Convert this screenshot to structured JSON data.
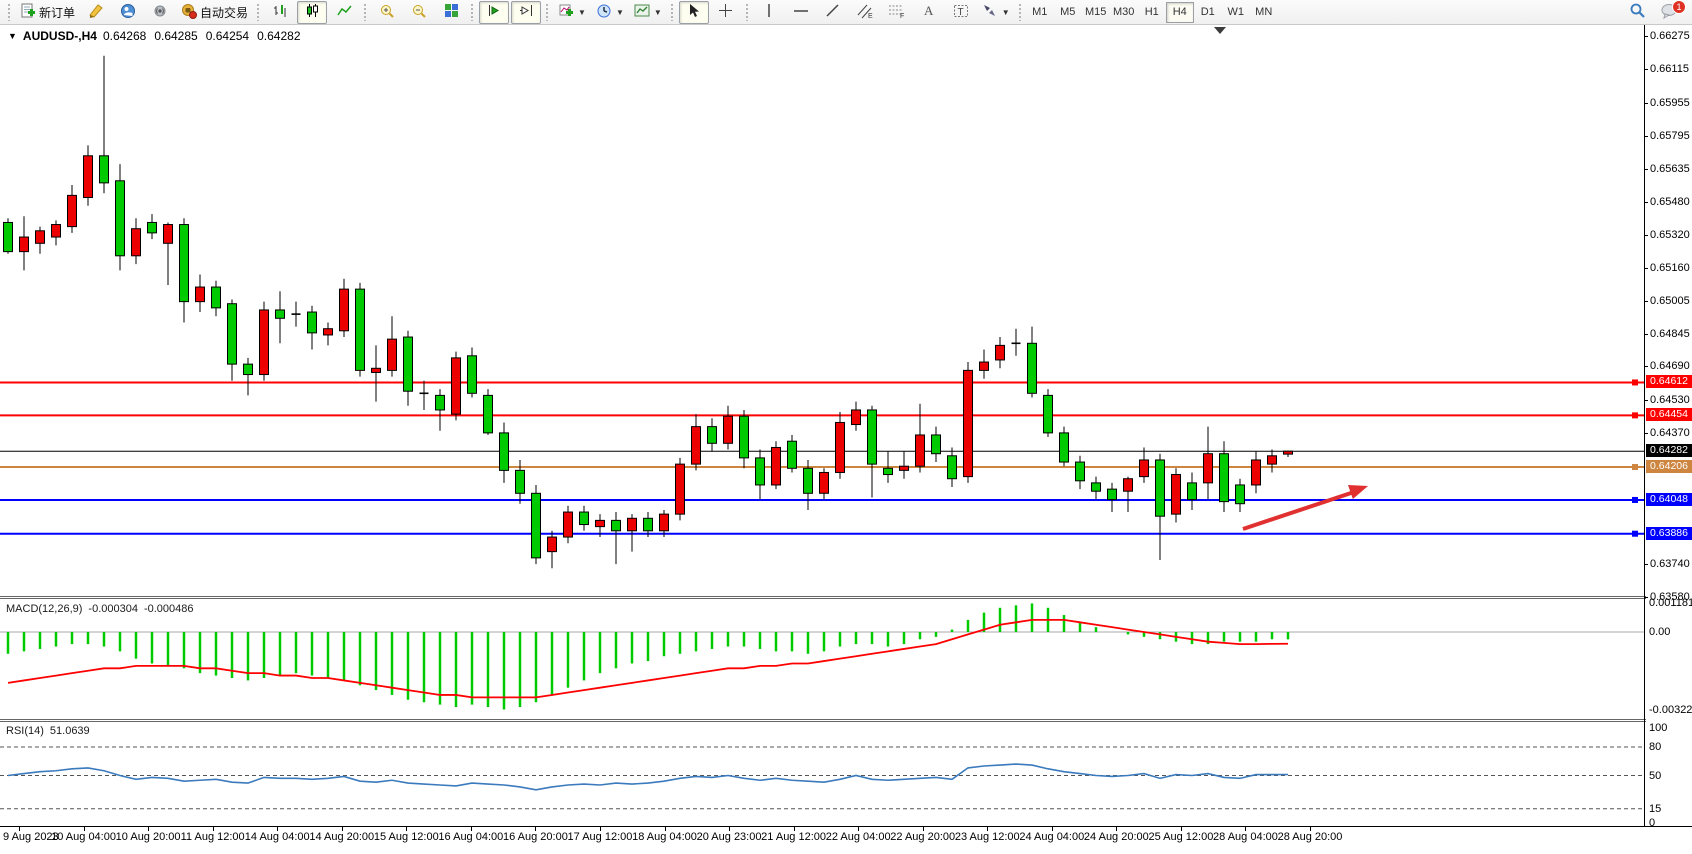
{
  "toolbar": {
    "new_order_label": "新订单",
    "autotrading_label": "自动交易",
    "notification_count": "1",
    "timeframes": [
      "M1",
      "M5",
      "M15",
      "M30",
      "H1",
      "H4",
      "D1",
      "W1",
      "MN"
    ],
    "active_timeframe": "H4"
  },
  "chart": {
    "title": "AUDUSD-,H4",
    "ohlc": {
      "open": "0.64268",
      "high": "0.64285",
      "low": "0.64254",
      "close": "0.64282"
    }
  },
  "colors": {
    "bull_candle": "#EC0000",
    "bear_candle": "#00CB00",
    "candle_outline": "#000000",
    "wick": "#000000",
    "resistance_line": "#FF0000",
    "pivot_line": "#CD853F",
    "support_line": "#0000FF",
    "current_price_line": "#000000",
    "macd_hist": "#00CB00",
    "macd_signal": "#FF0000",
    "rsi_line": "#3A7ABD",
    "arrow": "#E03030"
  },
  "chart_data": {
    "type": "candlestick",
    "symbol": "AUDUSD-",
    "period": "H4",
    "price_axis_ticks": [
      "0.66275",
      "0.66115",
      "0.65955",
      "0.65795",
      "0.65635",
      "0.65480",
      "0.65320",
      "0.65160",
      "0.65005",
      "0.64845",
      "0.64690",
      "0.64530",
      "0.64370",
      "0.63740",
      "0.63580"
    ],
    "hlines": [
      {
        "price": 0.64612,
        "label": "0.64612",
        "color": "#FF0000",
        "width": 2
      },
      {
        "price": 0.64454,
        "label": "0.64454",
        "color": "#FF0000",
        "width": 2
      },
      {
        "price": 0.64206,
        "label": "0.64206",
        "color": "#CD853F",
        "width": 2
      },
      {
        "price": 0.64048,
        "label": "0.64048",
        "color": "#0000FF",
        "width": 2
      },
      {
        "price": 0.63886,
        "label": "0.63886",
        "color": "#0000FF",
        "width": 2
      }
    ],
    "current_price": {
      "price": 0.64282,
      "label": "0.64282",
      "color": "#000000",
      "width": 1
    },
    "time_labels": [
      "9 Aug 2023",
      "10 Aug 04:00",
      "10 Aug 20:00",
      "11 Aug 12:00",
      "14 Aug 04:00",
      "14 Aug 20:00",
      "15 Aug 12:00",
      "16 Aug 04:00",
      "16 Aug 20:00",
      "17 Aug 12:00",
      "18 Aug 04:00",
      "20 Aug 23:00",
      "21 Aug 12:00",
      "22 Aug 04:00",
      "22 Aug 20:00",
      "23 Aug 12:00",
      "24 Aug 04:00",
      "24 Aug 20:00",
      "25 Aug 12:00",
      "28 Aug 04:00",
      "28 Aug 20:00"
    ],
    "candles": [
      [
        0.6538,
        0.654,
        0.6523,
        0.6524
      ],
      [
        0.6524,
        0.6541,
        0.6515,
        0.6531
      ],
      [
        0.6528,
        0.6536,
        0.6523,
        0.6534
      ],
      [
        0.6531,
        0.6539,
        0.6527,
        0.6537
      ],
      [
        0.6536,
        0.6556,
        0.6533,
        0.6551
      ],
      [
        0.655,
        0.6575,
        0.6546,
        0.657
      ],
      [
        0.657,
        0.6618,
        0.6552,
        0.6557
      ],
      [
        0.6558,
        0.6566,
        0.6515,
        0.6522
      ],
      [
        0.6522,
        0.654,
        0.6518,
        0.6535
      ],
      [
        0.6538,
        0.6542,
        0.653,
        0.6533
      ],
      [
        0.6528,
        0.6538,
        0.6508,
        0.6537
      ],
      [
        0.6537,
        0.654,
        0.649,
        0.65
      ],
      [
        0.65,
        0.6513,
        0.6495,
        0.6507
      ],
      [
        0.6507,
        0.651,
        0.6493,
        0.6497
      ],
      [
        0.6499,
        0.6501,
        0.6462,
        0.647
      ],
      [
        0.647,
        0.6473,
        0.6455,
        0.6465
      ],
      [
        0.6465,
        0.65,
        0.6462,
        0.6496
      ],
      [
        0.6496,
        0.6505,
        0.648,
        0.6492
      ],
      [
        0.6494,
        0.65,
        0.6488,
        0.6494
      ],
      [
        0.6495,
        0.6498,
        0.6477,
        0.6485
      ],
      [
        0.6484,
        0.649,
        0.6479,
        0.6487
      ],
      [
        0.6486,
        0.6511,
        0.6483,
        0.6506
      ],
      [
        0.6506,
        0.6509,
        0.6464,
        0.6467
      ],
      [
        0.6466,
        0.6479,
        0.6452,
        0.6468
      ],
      [
        0.6467,
        0.6493,
        0.6464,
        0.6482
      ],
      [
        0.6483,
        0.6486,
        0.645,
        0.6457
      ],
      [
        0.6456,
        0.6462,
        0.6448,
        0.6456
      ],
      [
        0.6455,
        0.6458,
        0.6438,
        0.6448
      ],
      [
        0.6446,
        0.6476,
        0.6443,
        0.6473
      ],
      [
        0.6474,
        0.6478,
        0.6454,
        0.6456
      ],
      [
        0.6455,
        0.6458,
        0.6436,
        0.6437
      ],
      [
        0.6437,
        0.6442,
        0.6413,
        0.6419
      ],
      [
        0.6419,
        0.6424,
        0.6403,
        0.6408
      ],
      [
        0.6408,
        0.6412,
        0.6374,
        0.6377
      ],
      [
        0.638,
        0.639,
        0.6372,
        0.6387
      ],
      [
        0.6387,
        0.6402,
        0.6384,
        0.6399
      ],
      [
        0.6399,
        0.6402,
        0.639,
        0.6393
      ],
      [
        0.6392,
        0.6398,
        0.6387,
        0.6395
      ],
      [
        0.6395,
        0.6399,
        0.6374,
        0.639
      ],
      [
        0.639,
        0.6398,
        0.638,
        0.6396
      ],
      [
        0.6396,
        0.6399,
        0.6387,
        0.639
      ],
      [
        0.639,
        0.64,
        0.6387,
        0.6398
      ],
      [
        0.6398,
        0.6425,
        0.6395,
        0.6422
      ],
      [
        0.6422,
        0.6446,
        0.6419,
        0.644
      ],
      [
        0.644,
        0.6444,
        0.6428,
        0.6432
      ],
      [
        0.6432,
        0.645,
        0.6429,
        0.6445
      ],
      [
        0.6445,
        0.6448,
        0.642,
        0.6425
      ],
      [
        0.6425,
        0.6429,
        0.6405,
        0.6412
      ],
      [
        0.6412,
        0.6433,
        0.641,
        0.643
      ],
      [
        0.6433,
        0.6436,
        0.6418,
        0.642
      ],
      [
        0.642,
        0.6424,
        0.64,
        0.6408
      ],
      [
        0.6408,
        0.642,
        0.6405,
        0.6418
      ],
      [
        0.6418,
        0.6447,
        0.6415,
        0.6442
      ],
      [
        0.6441,
        0.6452,
        0.6438,
        0.6448
      ],
      [
        0.6448,
        0.645,
        0.6406,
        0.6422
      ],
      [
        0.642,
        0.6428,
        0.6413,
        0.6417
      ],
      [
        0.6419,
        0.6428,
        0.6415,
        0.6421
      ],
      [
        0.6421,
        0.6451,
        0.6418,
        0.6436
      ],
      [
        0.6436,
        0.644,
        0.6423,
        0.6427
      ],
      [
        0.6426,
        0.643,
        0.6411,
        0.6415
      ],
      [
        0.6416,
        0.6471,
        0.6413,
        0.6467
      ],
      [
        0.6467,
        0.6477,
        0.6463,
        0.6471
      ],
      [
        0.6472,
        0.6483,
        0.6468,
        0.6479
      ],
      [
        0.648,
        0.6487,
        0.6474,
        0.648
      ],
      [
        0.648,
        0.6488,
        0.6454,
        0.6456
      ],
      [
        0.6455,
        0.6458,
        0.6435,
        0.6437
      ],
      [
        0.6437,
        0.644,
        0.6421,
        0.6423
      ],
      [
        0.6423,
        0.6426,
        0.641,
        0.6414
      ],
      [
        0.6413,
        0.6416,
        0.6405,
        0.6409
      ],
      [
        0.641,
        0.6413,
        0.6399,
        0.6405
      ],
      [
        0.6409,
        0.6416,
        0.6399,
        0.6415
      ],
      [
        0.6416,
        0.643,
        0.6413,
        0.6424
      ],
      [
        0.6424,
        0.6427,
        0.6376,
        0.6397
      ],
      [
        0.6398,
        0.642,
        0.6394,
        0.6417
      ],
      [
        0.6413,
        0.6418,
        0.64,
        0.6405
      ],
      [
        0.6413,
        0.644,
        0.6405,
        0.6427
      ],
      [
        0.6427,
        0.6433,
        0.6399,
        0.6404
      ],
      [
        0.6412,
        0.6415,
        0.6399,
        0.6403
      ],
      [
        0.6412,
        0.6428,
        0.6408,
        0.6424
      ],
      [
        0.6422,
        0.6429,
        0.6418,
        0.6426
      ],
      [
        0.64268,
        0.64285,
        0.64254,
        0.64282
      ]
    ],
    "annotation_arrow": {
      "from": [
        1243,
        529
      ],
      "to": [
        1368,
        486
      ]
    },
    "macd": {
      "label": "MACD(12,26,9)",
      "value": "-0.000304",
      "signal_value": "-0.000486",
      "axis_labels": [
        "0.001181",
        "0.00",
        "-0.003225"
      ],
      "hist": [
        -0.0009,
        -0.0008,
        -0.0007,
        -0.0006,
        -0.0005,
        -0.0005,
        -0.0006,
        -0.0008,
        -0.0011,
        -0.0013,
        -0.0014,
        -0.0015,
        -0.0017,
        -0.0018,
        -0.0019,
        -0.002,
        -0.0019,
        -0.0018,
        -0.0017,
        -0.0018,
        -0.0019,
        -0.002,
        -0.0022,
        -0.0024,
        -0.0026,
        -0.0028,
        -0.0029,
        -0.003,
        -0.0031,
        -0.003,
        -0.0031,
        -0.0032,
        -0.0031,
        -0.0029,
        -0.0026,
        -0.0023,
        -0.002,
        -0.0017,
        -0.0015,
        -0.0013,
        -0.0012,
        -0.001,
        -0.0009,
        -0.0008,
        -0.0007,
        -0.0006,
        -0.0006,
        -0.0007,
        -0.0008,
        -0.0008,
        -0.0009,
        -0.0008,
        -0.0006,
        -0.0005,
        -0.0005,
        -0.0006,
        -0.0005,
        -0.0003,
        -0.0002,
        0.0001,
        0.0005,
        0.0008,
        0.001,
        0.0011,
        0.00118,
        0.001,
        0.0007,
        0.0004,
        0.0002,
        0.0,
        -0.0001,
        -0.0002,
        -0.0003,
        -0.0004,
        -0.0005,
        -0.0005,
        -0.0004,
        -0.0004,
        -0.0004,
        -0.0003,
        -0.000304
      ],
      "signal": [
        -0.0021,
        -0.002,
        -0.0019,
        -0.0018,
        -0.0017,
        -0.0016,
        -0.0015,
        -0.0015,
        -0.0014,
        -0.0014,
        -0.0014,
        -0.0014,
        -0.0015,
        -0.0015,
        -0.0016,
        -0.0017,
        -0.0017,
        -0.0018,
        -0.0018,
        -0.0019,
        -0.0019,
        -0.002,
        -0.0021,
        -0.0022,
        -0.0023,
        -0.0024,
        -0.0025,
        -0.0026,
        -0.0026,
        -0.0027,
        -0.0027,
        -0.0027,
        -0.0027,
        -0.0027,
        -0.0026,
        -0.0025,
        -0.0024,
        -0.0023,
        -0.0022,
        -0.0021,
        -0.002,
        -0.0019,
        -0.0018,
        -0.0017,
        -0.0016,
        -0.0015,
        -0.0015,
        -0.0014,
        -0.0014,
        -0.0013,
        -0.0013,
        -0.0012,
        -0.0011,
        -0.001,
        -0.0009,
        -0.0008,
        -0.0007,
        -0.0006,
        -0.0005,
        -0.0003,
        -0.0001,
        0.0001,
        0.0003,
        0.0004,
        0.0005,
        0.0005,
        0.0005,
        0.0004,
        0.0003,
        0.0002,
        0.0001,
        0.0,
        -0.0001,
        -0.0002,
        -0.0003,
        -0.0004,
        -0.00045,
        -0.0005,
        -0.0005,
        -0.00049,
        -0.000486
      ]
    },
    "rsi": {
      "label": "RSI(14)",
      "value": "51.0639",
      "axis_labels": [
        "100",
        "80",
        "50",
        "15",
        "0"
      ],
      "dashed_levels": [
        80,
        50,
        15
      ],
      "values": [
        50,
        52,
        54,
        55,
        57,
        58,
        55,
        50,
        46,
        48,
        47,
        44,
        45,
        46,
        43,
        42,
        48,
        47,
        47,
        46,
        47,
        49,
        44,
        43,
        45,
        42,
        41,
        40,
        39,
        42,
        41,
        40,
        38,
        35,
        38,
        40,
        41,
        40,
        42,
        41,
        42,
        44,
        47,
        49,
        48,
        50,
        47,
        45,
        47,
        45,
        44,
        43,
        46,
        50,
        46,
        45,
        46,
        47,
        48,
        46,
        58,
        60,
        61,
        62,
        61,
        57,
        54,
        52,
        50,
        49,
        50,
        52,
        47,
        51,
        50,
        52,
        48,
        47,
        51,
        51,
        51.06
      ]
    }
  }
}
